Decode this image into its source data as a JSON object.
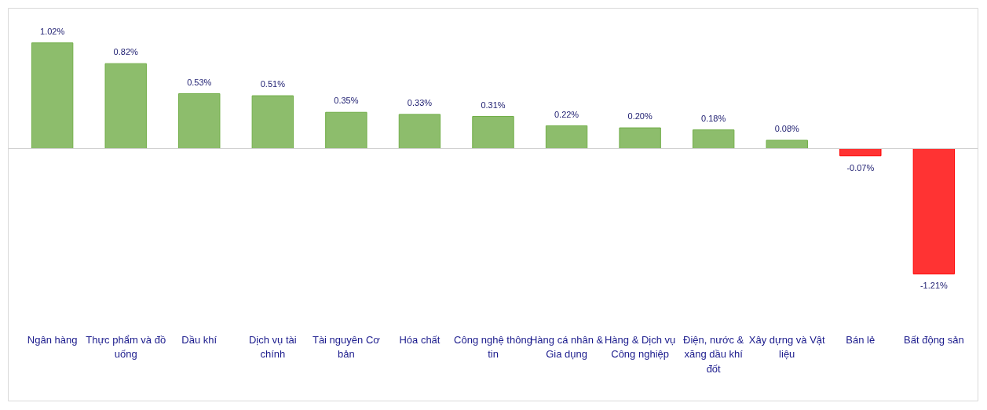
{
  "chart_data": {
    "type": "bar",
    "categories": [
      "Ngân hàng",
      "Thực phẩm và đồ uống",
      "Dầu khí",
      "Dịch vụ tài chính",
      "Tài nguyên Cơ bản",
      "Hóa chất",
      "Công nghệ thông tin",
      "Hàng cá nhân & Gia dụng",
      "Hàng & Dịch vụ Công nghiệp",
      "Điện, nước & xăng dầu khí đốt",
      "Xây dựng và Vật liệu",
      "Bán lẻ",
      "Bất động sản"
    ],
    "values": [
      1.02,
      0.82,
      0.53,
      0.51,
      0.35,
      0.33,
      0.31,
      0.22,
      0.2,
      0.18,
      0.08,
      -0.07,
      -1.21
    ],
    "value_labels": [
      "1.02%",
      "0.82%",
      "0.53%",
      "0.51%",
      "0.35%",
      "0.33%",
      "0.31%",
      "0.22%",
      "0.20%",
      "0.18%",
      "0.08%",
      "-0.07%",
      "-1.21%"
    ],
    "colors": [
      "#70ad47",
      "#70ad47",
      "#70ad47",
      "#70ad47",
      "#70ad47",
      "#70ad47",
      "#70ad47",
      "#70ad47",
      "#70ad47",
      "#70ad47",
      "#70ad47",
      "#ff0000",
      "#ff0000"
    ],
    "grid": false
  }
}
